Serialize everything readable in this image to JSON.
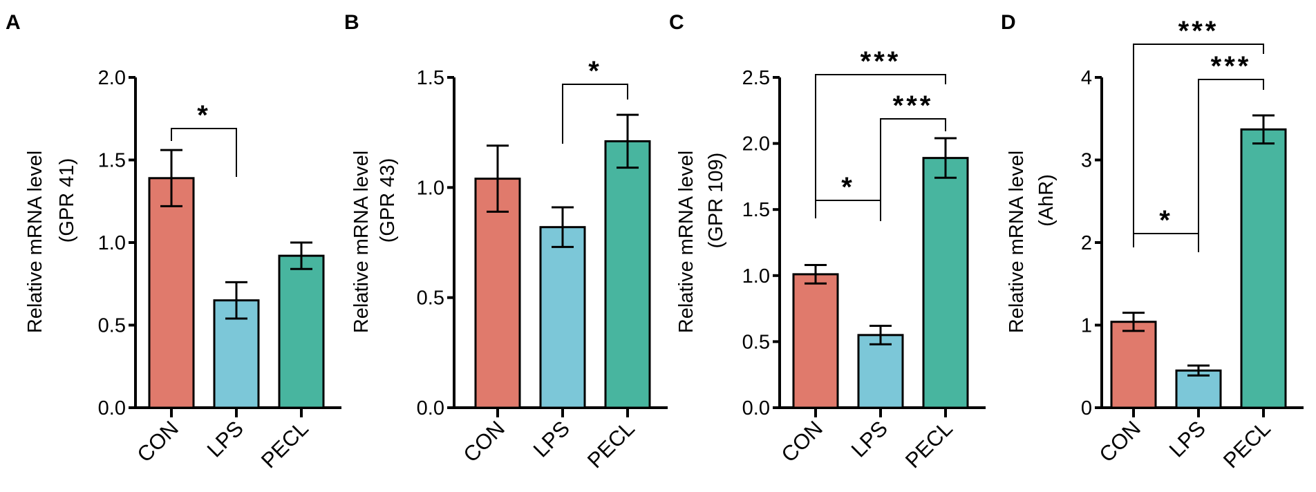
{
  "colors": {
    "CON": "#e07a6c",
    "LPS": "#7cc7d8",
    "PECL": "#48b59f"
  },
  "chart_data": [
    {
      "type": "bar",
      "panel": "A",
      "categories": [
        "CON",
        "LPS",
        "PECL"
      ],
      "values": [
        1.39,
        0.65,
        0.92
      ],
      "errors": [
        0.17,
        0.11,
        0.08
      ],
      "ylabel_lines": [
        "Relative mRNA level",
        "(GPR 41)"
      ],
      "ylim": [
        0,
        2.0
      ],
      "yticks": [
        "0.0",
        "0.5",
        "1.0",
        "1.5",
        "2.0"
      ],
      "significance": [
        {
          "from": "CON",
          "to": "LPS",
          "label": "*"
        }
      ]
    },
    {
      "type": "bar",
      "panel": "B",
      "categories": [
        "CON",
        "LPS",
        "PECL"
      ],
      "values": [
        1.04,
        0.82,
        1.21
      ],
      "errors": [
        0.15,
        0.09,
        0.12
      ],
      "ylabel_lines": [
        "Relative mRNA level",
        "(GPR 43)"
      ],
      "ylim": [
        0,
        1.5
      ],
      "yticks": [
        "0.0",
        "0.5",
        "1.0",
        "1.5"
      ],
      "significance": [
        {
          "from": "LPS",
          "to": "PECL",
          "label": "*"
        }
      ]
    },
    {
      "type": "bar",
      "panel": "C",
      "categories": [
        "CON",
        "LPS",
        "PECL"
      ],
      "values": [
        1.01,
        0.55,
        1.89
      ],
      "errors": [
        0.07,
        0.07,
        0.15
      ],
      "ylabel_lines": [
        "Relative mRNA level",
        "(GPR 109)"
      ],
      "ylim": [
        0,
        2.5
      ],
      "yticks": [
        "0.0",
        "0.5",
        "1.0",
        "1.5",
        "2.0",
        "2.5"
      ],
      "significance": [
        {
          "from": "CON",
          "to": "LPS",
          "label": "*"
        },
        {
          "from": "LPS",
          "to": "PECL",
          "label": "***"
        },
        {
          "from": "CON",
          "to": "PECL",
          "label": "***"
        }
      ]
    },
    {
      "type": "bar",
      "panel": "D",
      "categories": [
        "CON",
        "LPS",
        "PECL"
      ],
      "values": [
        1.04,
        0.45,
        3.37
      ],
      "errors": [
        0.11,
        0.06,
        0.17
      ],
      "ylabel_lines": [
        "Relative mRNA level",
        "(AhR)"
      ],
      "ylim": [
        0,
        4
      ],
      "yticks": [
        "0",
        "1",
        "2",
        "3",
        "4"
      ],
      "significance": [
        {
          "from": "CON",
          "to": "LPS",
          "label": "*"
        },
        {
          "from": "LPS",
          "to": "PECL",
          "label": "***"
        },
        {
          "from": "CON",
          "to": "PECL",
          "label": "***"
        }
      ]
    }
  ]
}
